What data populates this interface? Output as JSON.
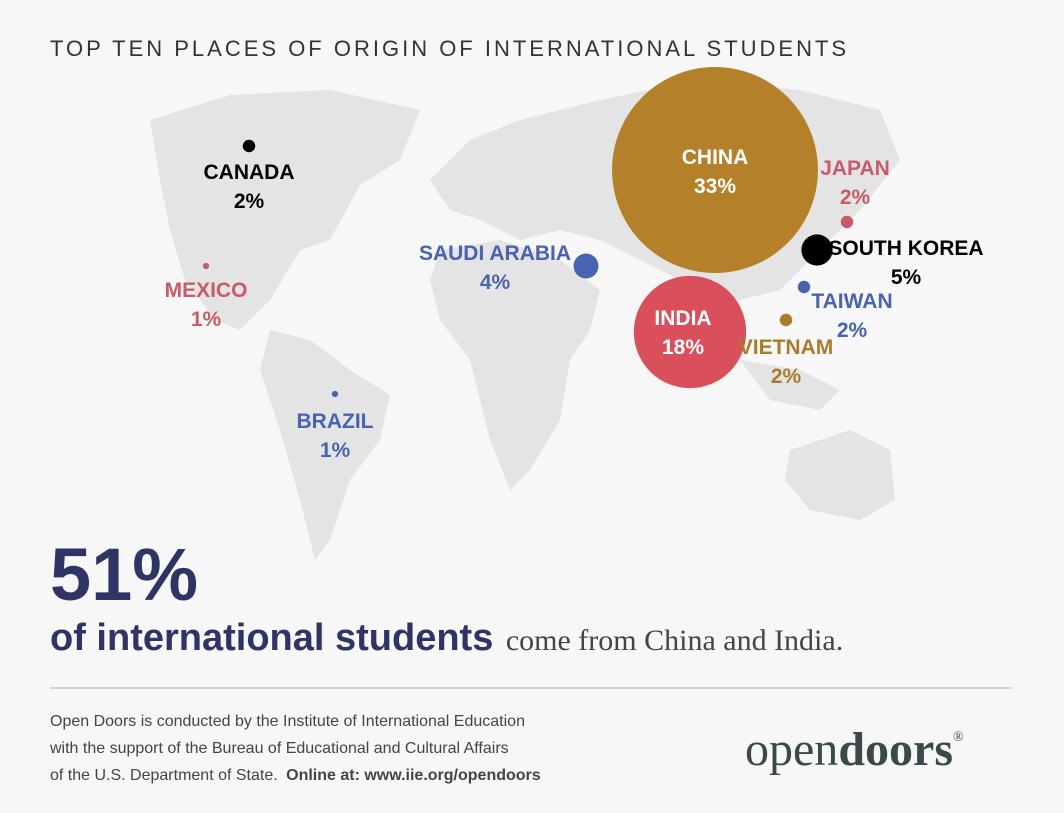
{
  "chart_data": {
    "type": "bubble",
    "title": "TOP TEN PLACES OF ORIGIN OF INTERNATIONAL STUDENTS",
    "categories": [
      "CHINA",
      "INDIA",
      "SOUTH KOREA",
      "SAUDI ARABIA",
      "CANADA",
      "VIETNAM",
      "TAIWAN",
      "JAPAN",
      "MEXICO",
      "BRAZIL"
    ],
    "values": [
      33,
      18,
      5,
      4,
      2,
      2,
      2,
      2,
      1,
      1
    ],
    "value_labels": [
      "33%",
      "18%",
      "5%",
      "4%",
      "2%",
      "2%",
      "2%",
      "2%",
      "1%",
      "1%"
    ],
    "colors": [
      "#b5802a",
      "#d9505c",
      "#000000",
      "#4a63b0",
      "#000000",
      "#a97c2c",
      "#4a63b0",
      "#c95a68",
      "#c95a68",
      "#4a63b0"
    ]
  },
  "headline": {
    "figure": "51%",
    "bold": "of international students",
    "rest": "come from China and India."
  },
  "footer": {
    "lines": [
      "Open Doors is conducted by the Institute of International Education",
      "with the support of the Bureau of Educational and Cultural Affairs",
      "of the U.S. Department of State."
    ],
    "link": "Online at: www.iie.org/opendoors"
  },
  "logo": {
    "light": "open",
    "bold": "doors",
    "mark": "®"
  }
}
